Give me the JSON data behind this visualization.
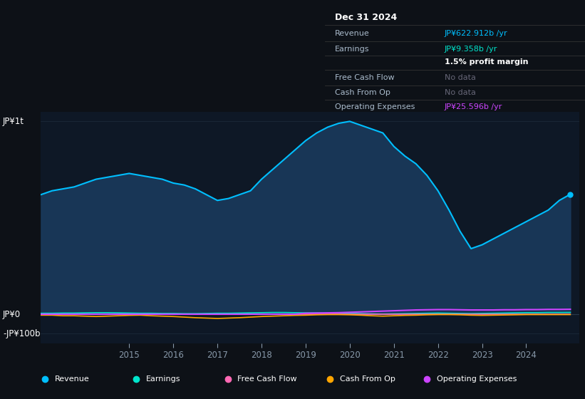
{
  "bg_color": "#0d1117",
  "plot_bg_color": "#0e1826",
  "grid_color": "#1e2d3d",
  "title_box": {
    "date": "Dec 31 2024",
    "revenue_label": "Revenue",
    "revenue_value": "JP¥622.912b /yr",
    "earnings_label": "Earnings",
    "earnings_value": "JP¥9.358b /yr",
    "profit_margin": "1.5% profit margin",
    "fcf_label": "Free Cash Flow",
    "fcf_value": "No data",
    "cashfromop_label": "Cash From Op",
    "cashfromop_value": "No data",
    "opex_label": "Operating Expenses",
    "opex_value": "JP¥25.596b /yr"
  },
  "years_x": [
    2013.0,
    2013.25,
    2013.5,
    2013.75,
    2014.0,
    2014.25,
    2014.5,
    2014.75,
    2015.0,
    2015.25,
    2015.5,
    2015.75,
    2016.0,
    2016.25,
    2016.5,
    2016.75,
    2017.0,
    2017.25,
    2017.5,
    2017.75,
    2018.0,
    2018.25,
    2018.5,
    2018.75,
    2019.0,
    2019.25,
    2019.5,
    2019.75,
    2020.0,
    2020.25,
    2020.5,
    2020.75,
    2021.0,
    2021.25,
    2021.5,
    2021.75,
    2022.0,
    2022.25,
    2022.5,
    2022.75,
    2023.0,
    2023.25,
    2023.5,
    2023.75,
    2024.0,
    2024.25,
    2024.5,
    2024.75,
    2025.0
  ],
  "revenue": [
    620,
    640,
    650,
    660,
    680,
    700,
    710,
    720,
    730,
    720,
    710,
    700,
    680,
    670,
    650,
    620,
    590,
    600,
    620,
    640,
    700,
    750,
    800,
    850,
    900,
    940,
    970,
    990,
    1000,
    980,
    960,
    940,
    870,
    820,
    780,
    720,
    640,
    540,
    430,
    340,
    360,
    390,
    420,
    450,
    480,
    510,
    540,
    590,
    622
  ],
  "earnings": [
    5,
    5,
    6,
    6,
    7,
    8,
    8,
    7,
    6,
    5,
    5,
    4,
    4,
    3,
    3,
    4,
    5,
    5,
    6,
    7,
    8,
    9,
    9,
    8,
    7,
    7,
    6,
    5,
    4,
    3,
    2,
    1,
    2,
    3,
    4,
    5,
    6,
    5,
    4,
    3,
    4,
    5,
    6,
    7,
    8,
    8,
    9,
    9,
    9.358
  ],
  "free_cash_flow": [
    0,
    0,
    0,
    0,
    0,
    0,
    0,
    0,
    0,
    0,
    0,
    0,
    0,
    0,
    0,
    0,
    0,
    0,
    0,
    0,
    0,
    0,
    0,
    0,
    0,
    0,
    0,
    0,
    0,
    0,
    0,
    0,
    0,
    0,
    0,
    0,
    0,
    0,
    0,
    0,
    0,
    0,
    0,
    0,
    0,
    0,
    0,
    0,
    0
  ],
  "cash_from_op": [
    -5,
    -5,
    -8,
    -8,
    -10,
    -12,
    -10,
    -8,
    -6,
    -5,
    -8,
    -10,
    -12,
    -15,
    -18,
    -20,
    -22,
    -20,
    -18,
    -15,
    -12,
    -10,
    -8,
    -6,
    -5,
    -3,
    -2,
    -2,
    -3,
    -5,
    -8,
    -10,
    -8,
    -6,
    -5,
    -3,
    -2,
    -2,
    -3,
    -5,
    -6,
    -5,
    -4,
    -3,
    -2,
    -2,
    -2,
    -2,
    -2
  ],
  "operating_expenses": [
    0,
    0,
    0,
    0,
    0,
    0,
    0,
    0,
    0,
    0,
    0,
    0,
    0,
    0,
    0,
    0,
    0,
    0,
    0,
    0,
    0,
    0,
    0,
    0,
    5,
    6,
    7,
    8,
    10,
    12,
    14,
    16,
    18,
    20,
    22,
    23,
    24,
    24,
    23,
    22,
    22,
    22,
    23,
    23,
    24,
    24,
    25,
    25,
    25.596
  ],
  "revenue_color": "#00bfff",
  "revenue_fill_color": "#1a3a5c",
  "earnings_color": "#00e5cc",
  "fcf_color": "#ff69b4",
  "cash_from_op_color": "#ffa500",
  "opex_color": "#cc44ff",
  "legend_items": [
    "Revenue",
    "Earnings",
    "Free Cash Flow",
    "Cash From Op",
    "Operating Expenses"
  ],
  "legend_colors": [
    "#00bfff",
    "#00e5cc",
    "#ff69b4",
    "#ffa500",
    "#cc44ff"
  ],
  "xlim": [
    2013.0,
    2025.2
  ],
  "ylim": [
    -150,
    1050
  ],
  "xtick_positions": [
    2015,
    2016,
    2017,
    2018,
    2019,
    2020,
    2021,
    2022,
    2023,
    2024
  ],
  "xtick_labels": [
    "2015",
    "2016",
    "2017",
    "2018",
    "2019",
    "2020",
    "2021",
    "2022",
    "2023",
    "2024"
  ],
  "ylabel_top": "JP¥1t",
  "ylabel_zero": "JP¥0",
  "ylabel_bottom": "-JP¥100b",
  "ylabel_top_val": 1000,
  "ylabel_zero_val": 0,
  "ylabel_bottom_val": -100
}
